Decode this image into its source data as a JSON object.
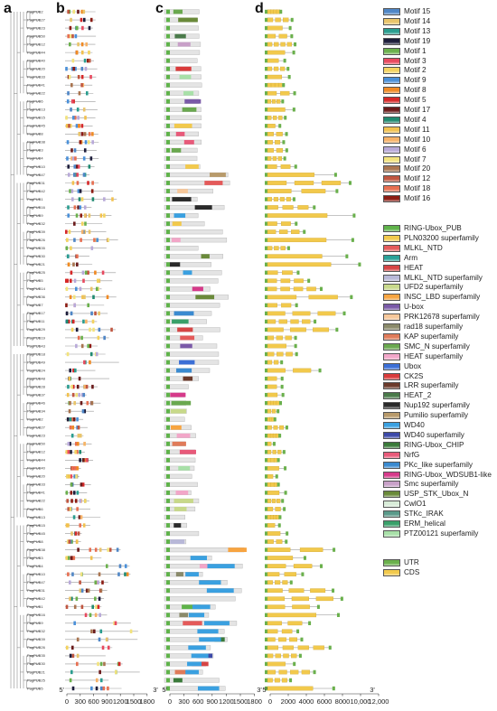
{
  "panels": {
    "a": "a",
    "b": "b",
    "c": "c",
    "d": "d"
  },
  "tree": {
    "prefix": "PagPUB",
    "labels": [
      "PagPUB2",
      "PagPUB27",
      "PagPUB23",
      "PagPUB50",
      "PagPUB12",
      "PagPUB44",
      "PagPUB40",
      "PagPUB20",
      "PagPUB33",
      "PagPUB41",
      "PagPUB22",
      "PagPUB6",
      "PagPUB13",
      "PagPUB15",
      "PagPUB45",
      "PagPUB8",
      "PagPUB38",
      "PagPUB3",
      "PagPUB4",
      "PagPUB10",
      "PagPUB47",
      "PagPUB31",
      "PagPUB42",
      "PagPUB1",
      "PagPUB16",
      "PagPUB9",
      "PagPUB32",
      "PagPUB39",
      "PagPUB26",
      "PagPUB35",
      "PagPUB30",
      "PagPUB21",
      "PagPUB25",
      "PagPUB5",
      "PagPUB14",
      "PagPUB36",
      "PagPUB7",
      "PagPUB17",
      "PagPUB11",
      "PagPUB29",
      "PagPUB19",
      "PagPUB43",
      "PagPUB18",
      "PagPUB49",
      "PagPUB24",
      "PagPUB48",
      "PagPUB28",
      "PagPUB37",
      "PagPUB46",
      "PagPUB34"
    ]
  },
  "panel_b": {
    "axis": {
      "start_label": "5'",
      "end_label": "3'",
      "ticks": [
        "0",
        "300",
        "600",
        "900",
        "1200",
        "1500",
        "1800"
      ]
    }
  },
  "panel_c": {
    "axis": {
      "start_label": "5'",
      "end_label": "3'",
      "ticks": [
        "0",
        "300",
        "600",
        "900",
        "1200",
        "1500",
        "1800"
      ]
    }
  },
  "panel_d": {
    "axis": {
      "start_label": "5'",
      "end_label": "3'",
      "ticks": [
        "0",
        "2000",
        "4000",
        "6000",
        "8000",
        "10,000",
        "12,000"
      ]
    }
  },
  "legend_motifs": [
    {
      "label": "Motif 15",
      "color": "#4f86c6"
    },
    {
      "label": "Motif 14",
      "color": "#e9c46a"
    },
    {
      "label": "Motif 13",
      "color": "#2a9d8f"
    },
    {
      "label": "Motif 19",
      "color": "#1d1d3b"
    },
    {
      "label": "Motif 1",
      "color": "#6ab04c"
    },
    {
      "label": "Motif 3",
      "color": "#e84a5f"
    },
    {
      "label": "Motif 2",
      "color": "#f4d35e"
    },
    {
      "label": "Motif 9",
      "color": "#4a90d9"
    },
    {
      "label": "Motif 8",
      "color": "#f08a24"
    },
    {
      "label": "Motif 5",
      "color": "#d62828"
    },
    {
      "label": "Motif 17",
      "color": "#6b1b1b"
    },
    {
      "label": "Motif 4",
      "color": "#1f8a70"
    },
    {
      "label": "Motif 11",
      "color": "#f2c14e"
    },
    {
      "label": "Motif 10",
      "color": "#f7b267"
    },
    {
      "label": "Motif 6",
      "color": "#b8a9d9"
    },
    {
      "label": "Motif 7",
      "color": "#f3e37c"
    },
    {
      "label": "Motif 20",
      "color": "#a9744f"
    },
    {
      "label": "Motif 12",
      "color": "#c05640"
    },
    {
      "label": "Motif 18",
      "color": "#e76f51"
    },
    {
      "label": "Motif 16",
      "color": "#8c1c13"
    }
  ],
  "legend_domains": [
    {
      "label": "RING-Ubox_PUB",
      "color": "#5fb34a"
    },
    {
      "label": "PLN03200 superfamily",
      "color": "#f2c94c"
    },
    {
      "label": "MLKL_NTD",
      "color": "#e45a5a"
    },
    {
      "label": "Arm",
      "color": "#2aa198"
    },
    {
      "label": "HEAT",
      "color": "#d64545"
    },
    {
      "label": "MLKL_NTD superfamily",
      "color": "#b8b8d8"
    },
    {
      "label": "UFD2 superfamily",
      "color": "#c8d98a"
    },
    {
      "label": "INSC_LBD superfamily",
      "color": "#f7a440"
    },
    {
      "label": "U-box",
      "color": "#7a5aa8"
    },
    {
      "label": "PRK12678 superfamily",
      "color": "#f6c79a"
    },
    {
      "label": "rad18 superfamily",
      "color": "#8a8a6a"
    },
    {
      "label": "KAP superfamily",
      "color": "#e07b5a"
    },
    {
      "label": "SMC_N superfamily",
      "color": "#6aa84f"
    },
    {
      "label": "HEAT superfamily",
      "color": "#f2a6c8"
    },
    {
      "label": "Ubox",
      "color": "#3b6fd6"
    },
    {
      "label": "CK2S",
      "color": "#d93b3b"
    },
    {
      "label": "LRR superfamily",
      "color": "#6b3a2a"
    },
    {
      "label": "HEAT_2",
      "color": "#4a7a4a"
    },
    {
      "label": "Nup192 superfamily",
      "color": "#2a2a2a"
    },
    {
      "label": "Pumilio superfamily",
      "color": "#b89a6a"
    },
    {
      "label": "WD40",
      "color": "#3aa0e0"
    },
    {
      "label": "WD40 superfamily",
      "color": "#3c4aa8"
    },
    {
      "label": "RING-Ubox_CHIP",
      "color": "#3a7a3a"
    },
    {
      "label": "NrfG",
      "color": "#e85a7a"
    },
    {
      "label": "PKc_like superfamily",
      "color": "#3a8ad0"
    },
    {
      "label": "RING-Ubox_WDSUB1-like",
      "color": "#d63a8a"
    },
    {
      "label": "Smc superfamily",
      "color": "#c8a0c8"
    },
    {
      "label": "USP_STK_Ubox_N",
      "color": "#6a8a3a"
    },
    {
      "label": "CwlO1",
      "color": "#d8ecd8"
    },
    {
      "label": "STKc_IRAK",
      "color": "#5a9a8a"
    },
    {
      "label": "ERM_helical",
      "color": "#3aa06a"
    },
    {
      "label": "PTZ00121 superfamily",
      "color": "#a8e0a8"
    }
  ],
  "legend_gene": [
    {
      "label": "UTR",
      "color": "#6ab04c"
    },
    {
      "label": "CDS",
      "color": "#f2c94c"
    }
  ]
}
